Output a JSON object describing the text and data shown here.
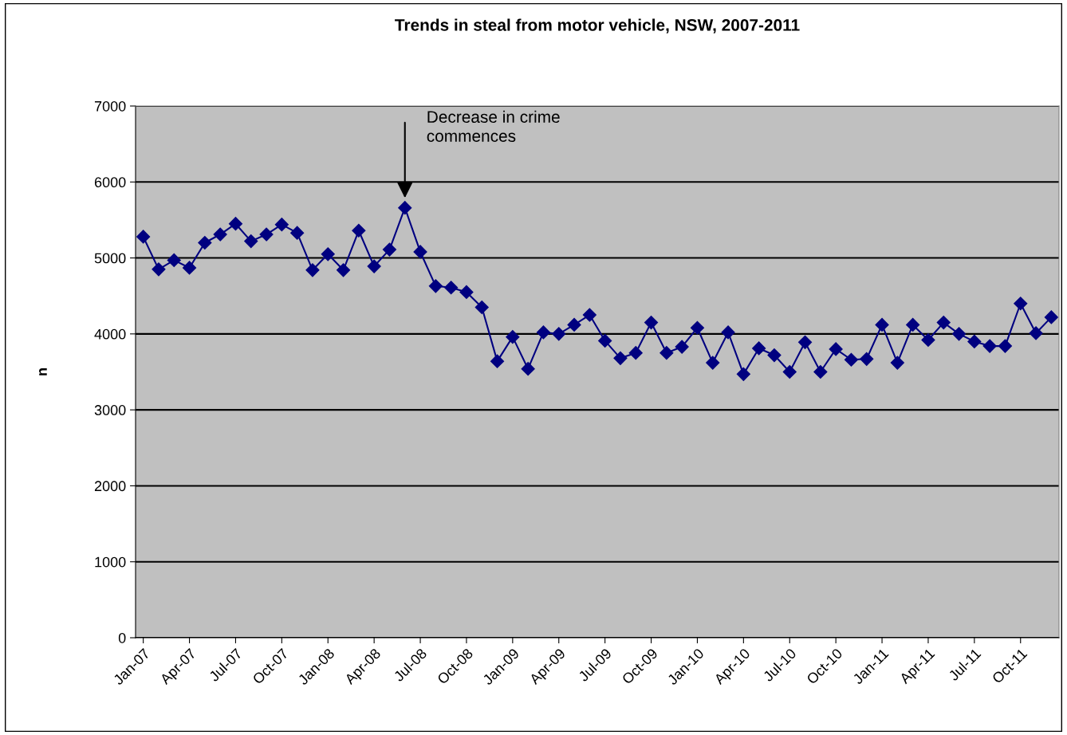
{
  "chart_data": {
    "type": "line",
    "title": "Trends in steal from motor vehicle, NSW, 2007-2011",
    "ylabel": "n",
    "categories": [
      "Jan-07",
      null,
      null,
      "Apr-07",
      null,
      null,
      "Jul-07",
      null,
      null,
      "Oct-07",
      null,
      null,
      "Jan-08",
      null,
      null,
      "Apr-08",
      null,
      null,
      "Jul-08",
      null,
      null,
      "Oct-08",
      null,
      null,
      "Jan-09",
      null,
      null,
      "Apr-09",
      null,
      null,
      "Jul-09",
      null,
      null,
      "Oct-09",
      null,
      null,
      "Jan-10",
      null,
      null,
      "Apr-10",
      null,
      null,
      "Jul-10",
      null,
      null,
      "Oct-10",
      null,
      null,
      "Jan-11",
      null,
      null,
      "Apr-11",
      null,
      null,
      "Jul-11",
      null,
      null,
      "Oct-11",
      null,
      null
    ],
    "series": [
      {
        "color": "#000080",
        "values": [
          5280,
          4850,
          4970,
          4870,
          5200,
          5310,
          5450,
          5220,
          5310,
          5440,
          5330,
          4840,
          5050,
          4840,
          5360,
          4890,
          5110,
          5660,
          5080,
          4630,
          4610,
          4550,
          4350,
          3640,
          3960,
          3540,
          4020,
          4000,
          4120,
          4250,
          3910,
          3680,
          3750,
          4150,
          3750,
          3830,
          4080,
          3620,
          4020,
          3470,
          3810,
          3720,
          3500,
          3890,
          3500,
          3800,
          3660,
          3670,
          4120,
          3620,
          4120,
          3920,
          4150,
          4000,
          3900,
          3840,
          3840,
          4400,
          4010,
          4220
        ]
      }
    ],
    "ylim": [
      0,
      7000
    ],
    "yticks": [
      0,
      1000,
      2000,
      3000,
      4000,
      5000,
      6000,
      7000
    ],
    "grid": "y",
    "marker": "diamond",
    "line_style": "solid",
    "annotations": [
      "Decrease in crime\ncommences"
    ]
  }
}
